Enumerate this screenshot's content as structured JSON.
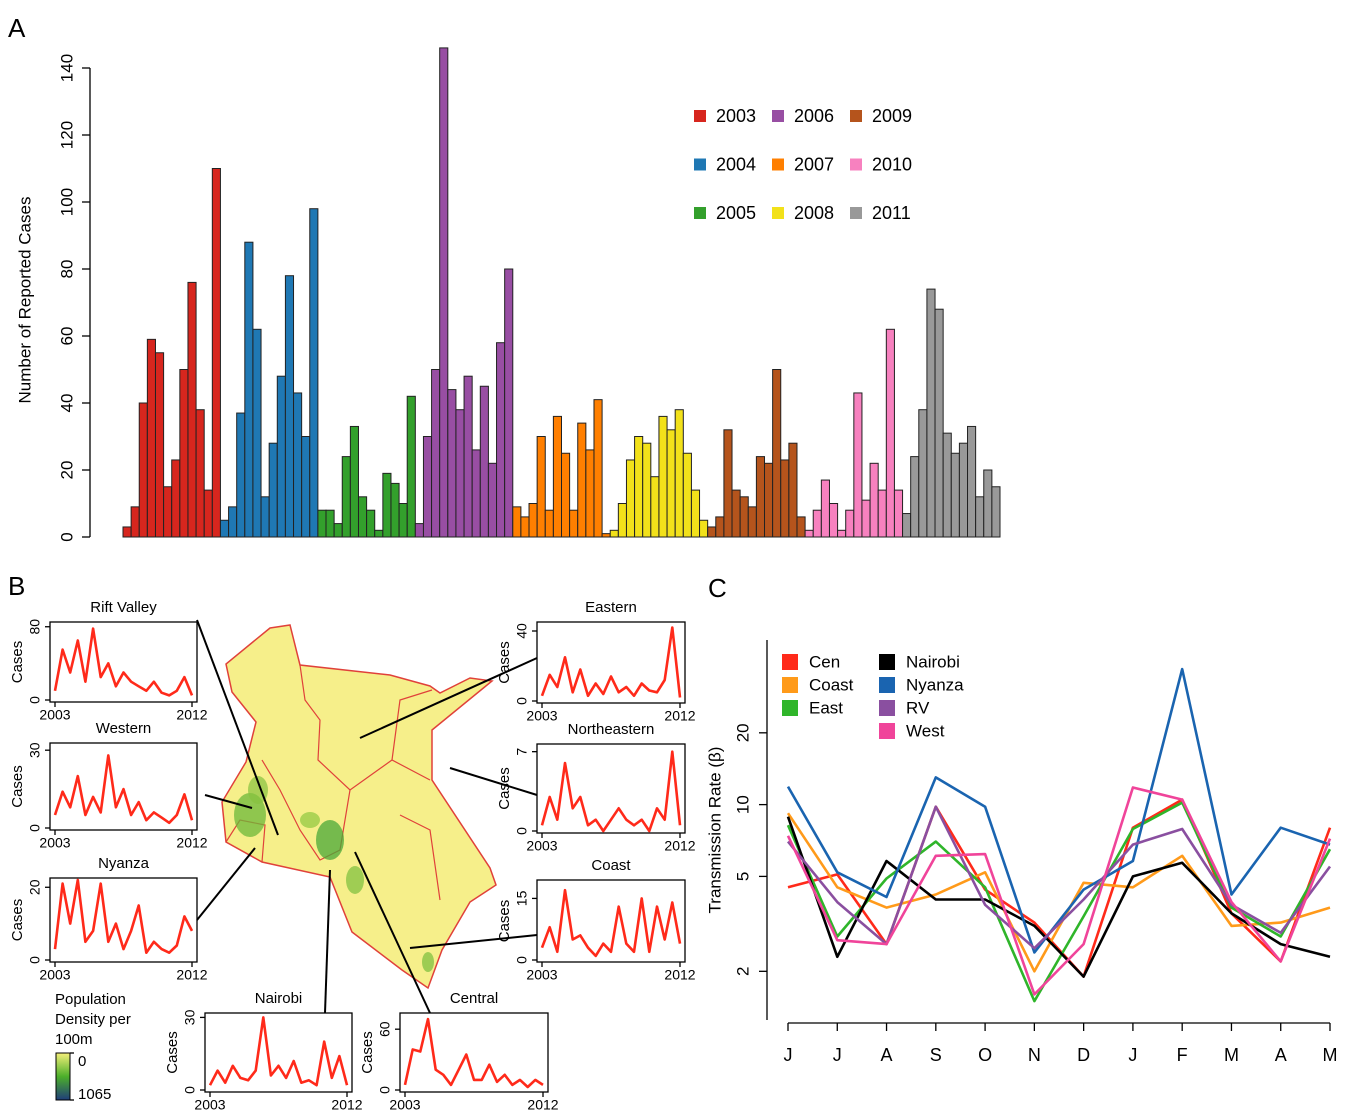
{
  "figure": {
    "panel_labels": [
      "A",
      "B",
      "C"
    ],
    "colorbar": {
      "title": [
        "Population",
        "Density per",
        "100m"
      ],
      "ticks": [
        0,
        1065
      ],
      "colors": [
        "#f5f07a",
        "#4caf2a",
        "#1f3d7a"
      ]
    }
  },
  "chart_data": [
    {
      "type": "bar",
      "ylabel": "Number of Reported Cases",
      "ylim": [
        0,
        140
      ],
      "yticks": [
        0,
        20,
        40,
        60,
        80,
        100,
        120,
        140
      ],
      "series": [
        {
          "name": "2003",
          "color": "#d7261e",
          "values": [
            3,
            9,
            40,
            59,
            55,
            15,
            23,
            50,
            76,
            38,
            14,
            110
          ]
        },
        {
          "name": "2004",
          "color": "#1f78b4",
          "values": [
            5,
            9,
            37,
            88,
            62,
            12,
            28,
            48,
            78,
            43,
            30,
            98
          ]
        },
        {
          "name": "2005",
          "color": "#33a02c",
          "values": [
            8,
            8,
            4,
            24,
            33,
            12,
            8,
            2,
            19,
            16,
            10,
            42
          ]
        },
        {
          "name": "2006",
          "color": "#984ea3",
          "values": [
            4,
            30,
            50,
            146,
            44,
            38,
            48,
            26,
            45,
            22,
            58,
            80
          ]
        },
        {
          "name": "2007",
          "color": "#ff7f00",
          "values": [
            9,
            6,
            10,
            30,
            8,
            36,
            25,
            8,
            34,
            26,
            41,
            1
          ]
        },
        {
          "name": "2008",
          "color": "#f2e11a",
          "values": [
            2,
            10,
            23,
            30,
            28,
            18,
            36,
            32,
            38,
            25,
            14,
            5
          ]
        },
        {
          "name": "2009",
          "color": "#b5541c",
          "values": [
            3,
            6,
            32,
            14,
            12,
            9,
            24,
            22,
            50,
            23,
            28,
            6
          ]
        },
        {
          "name": "2010",
          "color": "#f781bf",
          "values": [
            2,
            8,
            17,
            10,
            2,
            8,
            43,
            11,
            22,
            14,
            62,
            14
          ]
        },
        {
          "name": "2011",
          "color": "#999999",
          "values": [
            7,
            24,
            38,
            74,
            68,
            31,
            25,
            28,
            33,
            12,
            20,
            15
          ]
        }
      ]
    },
    {
      "type": "line",
      "title": "Rift Valley",
      "ylabel": "Cases",
      "color": "#ff2a1a",
      "xlim": [
        2003,
        2012
      ],
      "xticks": [
        2003,
        2012
      ],
      "ylim": [
        0,
        83
      ],
      "yticks": [
        0,
        80
      ],
      "x": [
        2003,
        2003.5,
        2004,
        2004.5,
        2005,
        2005.5,
        2006,
        2006.5,
        2007,
        2007.5,
        2008,
        2008.5,
        2009,
        2009.5,
        2010,
        2010.5,
        2011,
        2011.5,
        2012
      ],
      "values": [
        10,
        55,
        30,
        65,
        20,
        78,
        25,
        40,
        15,
        30,
        20,
        15,
        10,
        20,
        8,
        5,
        10,
        25,
        5
      ]
    },
    {
      "type": "line",
      "title": "Western",
      "ylabel": "Cases",
      "color": "#ff2a1a",
      "xlim": [
        2003,
        2012
      ],
      "xticks": [
        2003,
        2012
      ],
      "ylim": [
        0,
        32
      ],
      "yticks": [
        0,
        30
      ],
      "x": [
        2003,
        2003.5,
        2004,
        2004.5,
        2005,
        2005.5,
        2006,
        2006.5,
        2007,
        2007.5,
        2008,
        2008.5,
        2009,
        2009.5,
        2010,
        2010.5,
        2011,
        2011.5,
        2012
      ],
      "values": [
        5,
        14,
        8,
        20,
        5,
        12,
        6,
        28,
        8,
        15,
        5,
        10,
        3,
        6,
        4,
        2,
        5,
        13,
        3
      ]
    },
    {
      "type": "line",
      "title": "Nyanza",
      "ylabel": "Cases",
      "color": "#ff2a1a",
      "xlim": [
        2003,
        2012
      ],
      "xticks": [
        2003,
        2012
      ],
      "ylim": [
        0,
        22
      ],
      "yticks": [
        0,
        20
      ],
      "x": [
        2003,
        2003.5,
        2004,
        2004.5,
        2005,
        2005.5,
        2006,
        2006.5,
        2007,
        2007.5,
        2008,
        2008.5,
        2009,
        2009.5,
        2010,
        2010.5,
        2011,
        2011.5,
        2012
      ],
      "values": [
        3,
        21,
        10,
        22,
        5,
        8,
        21,
        5,
        10,
        3,
        8,
        15,
        2,
        5,
        3,
        2,
        4,
        12,
        8
      ]
    },
    {
      "type": "line",
      "title": "Eastern",
      "ylabel": "Cases",
      "color": "#ff2a1a",
      "xlim": [
        2003,
        2012
      ],
      "xticks": [
        2003,
        2012
      ],
      "ylim": [
        0,
        44
      ],
      "yticks": [
        0,
        40
      ],
      "x": [
        2003,
        2003.5,
        2004,
        2004.5,
        2005,
        2005.5,
        2006,
        2006.5,
        2007,
        2007.5,
        2008,
        2008.5,
        2009,
        2009.5,
        2010,
        2010.5,
        2011,
        2011.5,
        2012
      ],
      "values": [
        3,
        15,
        8,
        25,
        5,
        18,
        3,
        10,
        4,
        14,
        5,
        8,
        3,
        10,
        6,
        5,
        12,
        42,
        2
      ]
    },
    {
      "type": "line",
      "title": "Northeastern",
      "ylabel": "Cases",
      "color": "#ff2a1a",
      "xlim": [
        2003,
        2012
      ],
      "xticks": [
        2003,
        2012
      ],
      "ylim": [
        0,
        7.5
      ],
      "yticks": [
        0,
        7
      ],
      "x": [
        2003,
        2003.5,
        2004,
        2004.5,
        2005,
        2005.5,
        2006,
        2006.5,
        2007,
        2007.5,
        2008,
        2008.5,
        2009,
        2009.5,
        2010,
        2010.5,
        2011,
        2011.5,
        2012
      ],
      "values": [
        0.5,
        3,
        1,
        6,
        2,
        3,
        0.5,
        1,
        0,
        1,
        2,
        1,
        0.5,
        1,
        0,
        2,
        1,
        7,
        0.5
      ]
    },
    {
      "type": "line",
      "title": "Coast",
      "ylabel": "Cases",
      "color": "#ff2a1a",
      "xlim": [
        2003,
        2012
      ],
      "xticks": [
        2003,
        2012
      ],
      "ylim": [
        0,
        19
      ],
      "yticks": [
        0,
        15
      ],
      "x": [
        2003,
        2003.5,
        2004,
        2004.5,
        2005,
        2005.5,
        2006,
        2006.5,
        2007,
        2007.5,
        2008,
        2008.5,
        2009,
        2009.5,
        2010,
        2010.5,
        2011,
        2011.5,
        2012
      ],
      "values": [
        3,
        8,
        2,
        17,
        5,
        6,
        3,
        1,
        4,
        2,
        13,
        4,
        2,
        15,
        2,
        13,
        5,
        14,
        4
      ]
    },
    {
      "type": "line",
      "title": "Nairobi",
      "ylabel": "Cases",
      "color": "#ff2a1a",
      "xlim": [
        2003,
        2012
      ],
      "xticks": [
        2003,
        2012
      ],
      "ylim": [
        0,
        31
      ],
      "yticks": [
        0,
        30
      ],
      "x": [
        2003,
        2003.5,
        2004,
        2004.5,
        2005,
        2005.5,
        2006,
        2006.5,
        2007,
        2007.5,
        2008,
        2008.5,
        2009,
        2009.5,
        2010,
        2010.5,
        2011,
        2011.5,
        2012
      ],
      "values": [
        2,
        8,
        3,
        10,
        5,
        4,
        8,
        30,
        6,
        10,
        5,
        12,
        3,
        4,
        2,
        20,
        5,
        14,
        2
      ]
    },
    {
      "type": "line",
      "title": "Central",
      "ylabel": "Cases",
      "color": "#ff2a1a",
      "xlim": [
        2003,
        2012
      ],
      "xticks": [
        2003,
        2012
      ],
      "ylim": [
        0,
        74
      ],
      "yticks": [
        0,
        60
      ],
      "x": [
        2003,
        2003.5,
        2004,
        2004.5,
        2005,
        2005.5,
        2006,
        2006.5,
        2007,
        2007.5,
        2008,
        2008.5,
        2009,
        2009.5,
        2010,
        2010.5,
        2011,
        2011.5,
        2012
      ],
      "values": [
        5,
        40,
        38,
        70,
        20,
        15,
        5,
        20,
        35,
        10,
        10,
        25,
        8,
        15,
        5,
        10,
        3,
        10,
        5
      ]
    },
    {
      "type": "multiline",
      "ylabel": "Transmission Rate (β)",
      "log_scale": true,
      "ylim": [
        1.25,
        49
      ],
      "yticks": [
        2,
        5,
        10,
        20
      ],
      "categories": [
        "J",
        "J",
        "A",
        "S",
        "O",
        "N",
        "D",
        "J",
        "F",
        "M",
        "A",
        "M"
      ],
      "series": [
        {
          "name": "Cen",
          "color": "#ff2a1a",
          "values": [
            4.5,
            5.1,
            2.6,
            9.8,
            4.4,
            3.2,
            1.9,
            8,
            10.5,
            3.5,
            2.2,
            8
          ]
        },
        {
          "name": "Coast",
          "color": "#ff9a1a",
          "values": [
            9.2,
            4.5,
            3.7,
            4.2,
            5.2,
            2.0,
            4.7,
            4.5,
            6.1,
            3.1,
            3.2,
            3.7
          ]
        },
        {
          "name": "East",
          "color": "#2fb52a",
          "values": [
            8.2,
            2.8,
            4.9,
            7,
            4.5,
            1.5,
            3.4,
            7.9,
            10.2,
            3.7,
            2.8,
            6.5
          ]
        },
        {
          "name": "Nairobi",
          "color": "#000000",
          "values": [
            8.9,
            2.3,
            5.8,
            4.0,
            4.0,
            3.1,
            1.9,
            5.0,
            5.7,
            3.5,
            2.6,
            2.3
          ]
        },
        {
          "name": "Nyanza",
          "color": "#1a64b0",
          "values": [
            11.9,
            5.2,
            4.1,
            13,
            9.8,
            2.4,
            4.4,
            5.8,
            37,
            4.2,
            8,
            6.8
          ]
        },
        {
          "name": "RV",
          "color": "#8a4fa0",
          "values": [
            7,
            3.9,
            2.6,
            9.8,
            3.8,
            2.5,
            4.0,
            6.8,
            7.9,
            3.8,
            2.9,
            5.5
          ]
        },
        {
          "name": "West",
          "color": "#f0449a",
          "values": [
            7.4,
            2.7,
            2.6,
            6.1,
            6.2,
            1.6,
            2.6,
            11.8,
            10.5,
            3.9,
            2.2,
            7.2
          ]
        }
      ]
    }
  ]
}
